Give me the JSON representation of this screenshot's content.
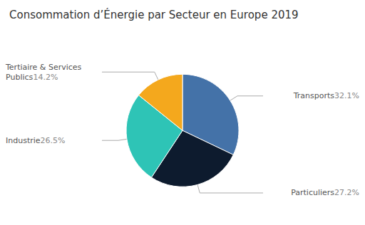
{
  "chart_data": {
    "type": "pie",
    "title": "Consommation d’Énergie par Secteur en Europe 2019",
    "categories": [
      "Transports",
      "Particuliers",
      "Industrie",
      "Tertiaire & Services Publics"
    ],
    "values": [
      32.1,
      27.2,
      26.5,
      14.2
    ],
    "value_labels": [
      "32.1%",
      "27.2%",
      "26.5%",
      "14.2%"
    ],
    "colors": [
      "#4472a8",
      "#0d1b2e",
      "#2ec4b6",
      "#f4a81d"
    ],
    "data_labels": true
  }
}
